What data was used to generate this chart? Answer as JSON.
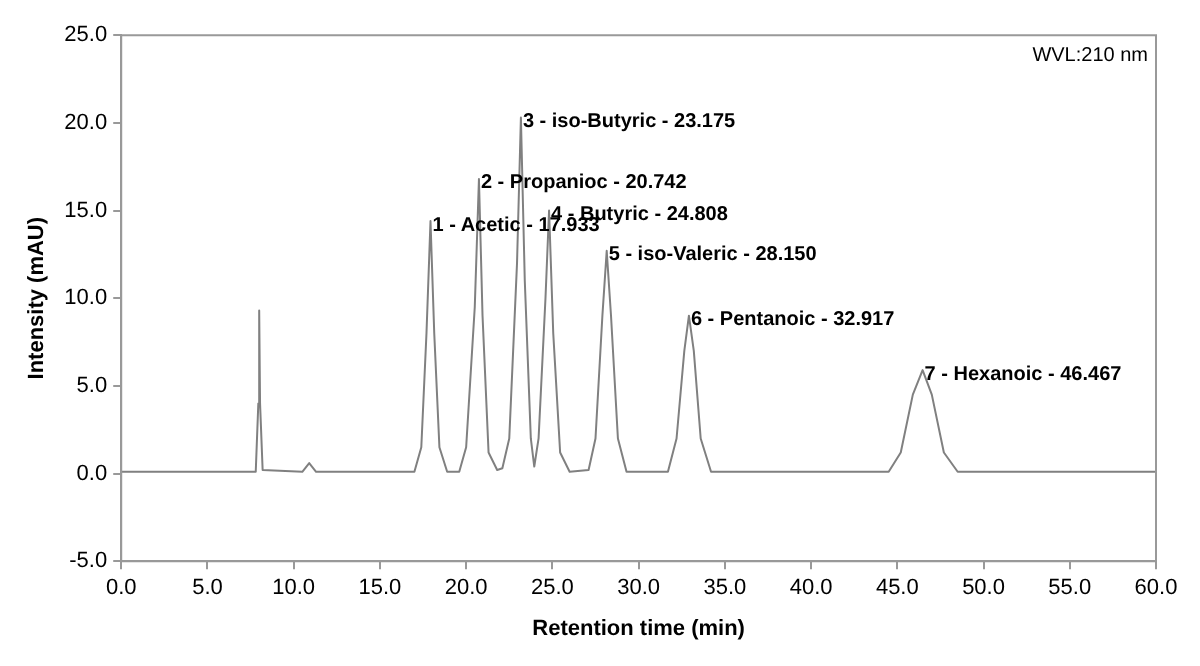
{
  "chart_data": {
    "type": "line",
    "xlabel": "Retention time (min)",
    "ylabel": "Intensity (mAU)",
    "xlim": [
      0,
      60
    ],
    "xticks": [
      {
        "value": 0,
        "label": "0.0"
      },
      {
        "value": 5,
        "label": "5.0"
      },
      {
        "value": 10,
        "label": "10.0"
      },
      {
        "value": 15,
        "label": "15.0"
      },
      {
        "value": 20,
        "label": "20.0"
      },
      {
        "value": 25,
        "label": "25.0"
      },
      {
        "value": 30,
        "label": "30.0"
      },
      {
        "value": 35,
        "label": "35.0"
      },
      {
        "value": 40,
        "label": "40.0"
      },
      {
        "value": 45,
        "label": "45.0"
      },
      {
        "value": 50,
        "label": "50.0"
      },
      {
        "value": 55,
        "label": "55.0"
      },
      {
        "value": 60,
        "label": "60.0"
      }
    ],
    "ylim": [
      -5,
      25
    ],
    "yticks": [
      {
        "value": -5,
        "label": "-5.0"
      },
      {
        "value": 0,
        "label": "0.0"
      },
      {
        "value": 5,
        "label": "5.0"
      },
      {
        "value": 10,
        "label": "10.0"
      },
      {
        "value": 15,
        "label": "15.0"
      },
      {
        "value": 20,
        "label": "20.0"
      },
      {
        "value": 25,
        "label": "25.0"
      }
    ],
    "legend": false,
    "marker": "none",
    "line_style": "solid",
    "series": [
      {
        "color": "#808080",
        "x": [
          0,
          7.8,
          7.95,
          8.0,
          8.05,
          8.2,
          10.5,
          10.9,
          11.3,
          17.0,
          17.4,
          17.7,
          17.933,
          18.15,
          18.45,
          18.9,
          19.6,
          20.0,
          20.5,
          20.742,
          20.95,
          21.3,
          21.8,
          22.1,
          22.5,
          22.95,
          23.175,
          23.4,
          23.75,
          23.95,
          24.2,
          24.6,
          24.808,
          25.05,
          25.45,
          26.0,
          27.1,
          27.5,
          27.9,
          28.15,
          28.4,
          28.8,
          29.3,
          31.7,
          32.2,
          32.65,
          32.917,
          33.2,
          33.6,
          34.2,
          44.5,
          45.2,
          45.9,
          46.467,
          47.0,
          47.7,
          48.5,
          60
        ],
        "values": [
          0.1,
          0.1,
          4,
          9.3,
          4,
          0.2,
          0.1,
          0.6,
          0.1,
          0.1,
          1.5,
          8,
          14.4,
          8,
          1.5,
          0.1,
          0.1,
          1.5,
          9.5,
          16.8,
          9,
          1.2,
          0.2,
          0.3,
          2,
          12,
          20.3,
          11,
          2,
          0.4,
          2,
          10,
          15,
          8,
          1.2,
          0.1,
          0.2,
          2,
          9,
          12.7,
          9,
          2,
          0.1,
          0.1,
          2,
          7,
          9,
          7,
          2,
          0.1,
          0.1,
          1.2,
          4.5,
          5.9,
          4.5,
          1.2,
          0.1,
          0.1
        ]
      }
    ],
    "annotations": [
      "WVL:210 nm",
      {
        "text": "1 - Acetic - 17.933",
        "x": 17.933,
        "y": 14.4
      },
      {
        "text": "2 - Propanioc - 20.742",
        "x": 20.742,
        "y": 16.8
      },
      {
        "text": "3 - iso-Butyric - 23.175",
        "x": 23.175,
        "y": 20.3
      },
      {
        "text": "4 - Butyric - 24.808",
        "x": 24.808,
        "y": 15
      },
      {
        "text": "5 - iso-Valeric - 28.150",
        "x": 28.15,
        "y": 12.7
      },
      {
        "text": "6 - Pentanoic - 32.917",
        "x": 32.917,
        "y": 9
      },
      {
        "text": "7 - Hexanoic - 46.467",
        "x": 46.467,
        "y": 5.9
      }
    ]
  }
}
